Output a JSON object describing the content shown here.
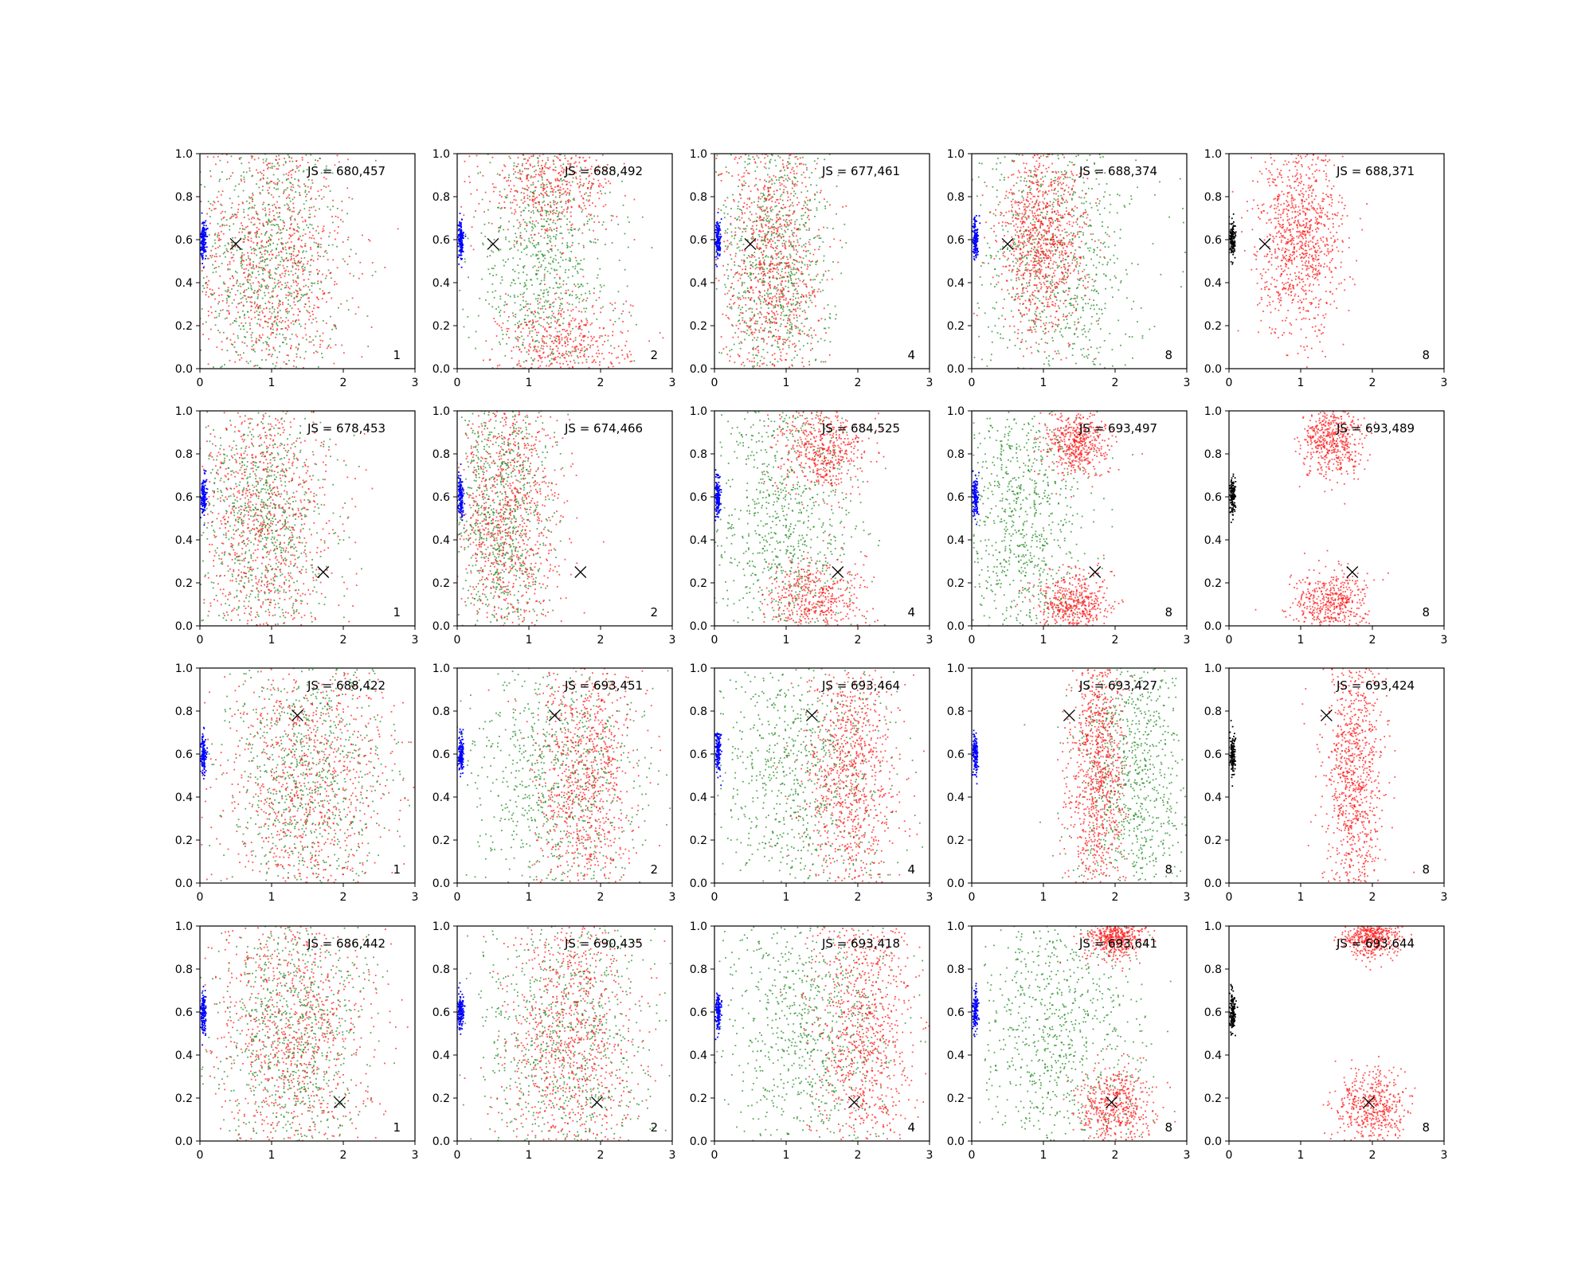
{
  "figure": {
    "rows": 4,
    "cols": 5,
    "colors": {
      "scatter_a": "#228B22",
      "scatter_b": "#FF1A1A",
      "source_cluster": "#0000FF",
      "source_cluster_final": "#000000",
      "marker": "#000000",
      "axes": "#000000"
    }
  },
  "chart_data": {
    "type": "scatter",
    "xlim": [
      0,
      3
    ],
    "ylim": [
      0,
      1
    ],
    "xticks": [
      "0",
      "1",
      "2",
      "3"
    ],
    "yticks": [
      "0.0",
      "0.2",
      "0.4",
      "0.6",
      "0.8",
      "1.0"
    ],
    "grid": false,
    "source_cluster": {
      "x": 0.05,
      "y": 0.6
    },
    "panels": [
      {
        "row": 0,
        "col": 0,
        "label": "JS = 680,457",
        "iter": "1",
        "target": {
          "x": 0.5,
          "y": 0.58
        },
        "red": [
          {
            "x": 1.0,
            "y": 0.5,
            "sx": 0.55,
            "sy": 0.35
          }
        ],
        "green": [
          {
            "x": 0.95,
            "y": 0.5,
            "sx": 0.5,
            "sy": 0.35
          }
        ],
        "source_color": "blue"
      },
      {
        "row": 0,
        "col": 1,
        "label": "JS = 688,492",
        "iter": "2",
        "target": {
          "x": 0.5,
          "y": 0.58
        },
        "red": [
          {
            "x": 1.3,
            "y": 0.85,
            "sx": 0.45,
            "sy": 0.12
          },
          {
            "x": 1.5,
            "y": 0.1,
            "sx": 0.45,
            "sy": 0.12
          }
        ],
        "green": [
          {
            "x": 1.2,
            "y": 0.5,
            "sx": 0.5,
            "sy": 0.35
          }
        ],
        "source_color": "blue"
      },
      {
        "row": 0,
        "col": 2,
        "label": "JS = 677,461",
        "iter": "4",
        "target": {
          "x": 0.5,
          "y": 0.58
        },
        "red": [
          {
            "x": 0.8,
            "y": 0.5,
            "sx": 0.35,
            "sy": 0.35
          }
        ],
        "green": [
          {
            "x": 0.85,
            "y": 0.5,
            "sx": 0.4,
            "sy": 0.35
          }
        ],
        "source_color": "blue"
      },
      {
        "row": 0,
        "col": 3,
        "label": "JS = 688,374",
        "iter": "8",
        "target": {
          "x": 0.5,
          "y": 0.58
        },
        "red": [
          {
            "x": 1.0,
            "y": 0.6,
            "sx": 0.3,
            "sy": 0.22
          }
        ],
        "green": [
          {
            "x": 1.2,
            "y": 0.5,
            "sx": 0.55,
            "sy": 0.35
          }
        ],
        "source_color": "blue"
      },
      {
        "row": 0,
        "col": 4,
        "label": "JS = 688,371",
        "iter": "8",
        "target": {
          "x": 0.5,
          "y": 0.58
        },
        "red": [
          {
            "x": 1.0,
            "y": 0.6,
            "sx": 0.3,
            "sy": 0.22
          }
        ],
        "green": [],
        "source_color": "black"
      },
      {
        "row": 1,
        "col": 0,
        "label": "JS = 678,453",
        "iter": "1",
        "target": {
          "x": 1.72,
          "y": 0.25
        },
        "red": [
          {
            "x": 0.9,
            "y": 0.5,
            "sx": 0.5,
            "sy": 0.35
          }
        ],
        "green": [
          {
            "x": 0.9,
            "y": 0.5,
            "sx": 0.45,
            "sy": 0.35
          }
        ],
        "source_color": "blue"
      },
      {
        "row": 1,
        "col": 1,
        "label": "JS = 674,466",
        "iter": "2",
        "target": {
          "x": 1.72,
          "y": 0.25
        },
        "red": [
          {
            "x": 0.7,
            "y": 0.5,
            "sx": 0.4,
            "sy": 0.35
          }
        ],
        "green": [
          {
            "x": 0.6,
            "y": 0.5,
            "sx": 0.35,
            "sy": 0.35
          }
        ],
        "source_color": "blue"
      },
      {
        "row": 1,
        "col": 2,
        "label": "JS = 684,525",
        "iter": "4",
        "target": {
          "x": 1.72,
          "y": 0.25
        },
        "red": [
          {
            "x": 1.5,
            "y": 0.82,
            "sx": 0.3,
            "sy": 0.1
          },
          {
            "x": 1.4,
            "y": 0.12,
            "sx": 0.35,
            "sy": 0.1
          }
        ],
        "green": [
          {
            "x": 1.0,
            "y": 0.5,
            "sx": 0.5,
            "sy": 0.35
          }
        ],
        "source_color": "blue"
      },
      {
        "row": 1,
        "col": 3,
        "label": "JS = 693,497",
        "iter": "8",
        "target": {
          "x": 1.72,
          "y": 0.25
        },
        "red": [
          {
            "x": 1.45,
            "y": 0.85,
            "sx": 0.22,
            "sy": 0.08
          },
          {
            "x": 1.4,
            "y": 0.1,
            "sx": 0.25,
            "sy": 0.08
          }
        ],
        "green": [
          {
            "x": 0.7,
            "y": 0.5,
            "sx": 0.45,
            "sy": 0.35
          }
        ],
        "source_color": "blue"
      },
      {
        "row": 1,
        "col": 4,
        "label": "JS = 693,489",
        "iter": "8",
        "target": {
          "x": 1.72,
          "y": 0.25
        },
        "red": [
          {
            "x": 1.45,
            "y": 0.85,
            "sx": 0.22,
            "sy": 0.08
          },
          {
            "x": 1.4,
            "y": 0.1,
            "sx": 0.25,
            "sy": 0.08
          }
        ],
        "green": [],
        "source_color": "black"
      },
      {
        "row": 2,
        "col": 0,
        "label": "JS = 688,422",
        "iter": "1",
        "target": {
          "x": 1.36,
          "y": 0.78
        },
        "red": [
          {
            "x": 1.5,
            "y": 0.5,
            "sx": 0.6,
            "sy": 0.35
          }
        ],
        "green": [
          {
            "x": 1.5,
            "y": 0.5,
            "sx": 0.55,
            "sy": 0.35
          }
        ],
        "source_color": "blue"
      },
      {
        "row": 2,
        "col": 1,
        "label": "JS = 693,451",
        "iter": "2",
        "target": {
          "x": 1.36,
          "y": 0.78
        },
        "red": [
          {
            "x": 1.8,
            "y": 0.5,
            "sx": 0.35,
            "sy": 0.35
          }
        ],
        "green": [
          {
            "x": 1.4,
            "y": 0.5,
            "sx": 0.6,
            "sy": 0.35
          }
        ],
        "source_color": "blue"
      },
      {
        "row": 2,
        "col": 2,
        "label": "JS = 693,464",
        "iter": "4",
        "target": {
          "x": 1.36,
          "y": 0.78
        },
        "red": [
          {
            "x": 1.9,
            "y": 0.5,
            "sx": 0.3,
            "sy": 0.35
          }
        ],
        "green": [
          {
            "x": 1.2,
            "y": 0.5,
            "sx": 0.6,
            "sy": 0.35
          }
        ],
        "source_color": "blue"
      },
      {
        "row": 2,
        "col": 3,
        "label": "JS = 693,427",
        "iter": "8",
        "target": {
          "x": 1.36,
          "y": 0.78
        },
        "red": [
          {
            "x": 1.75,
            "y": 0.5,
            "sx": 0.2,
            "sy": 0.35
          }
        ],
        "green": [
          {
            "x": 2.3,
            "y": 0.5,
            "sx": 0.4,
            "sy": 0.35
          }
        ],
        "source_color": "blue"
      },
      {
        "row": 2,
        "col": 4,
        "label": "JS = 693,424",
        "iter": "8",
        "target": {
          "x": 1.36,
          "y": 0.78
        },
        "red": [
          {
            "x": 1.75,
            "y": 0.5,
            "sx": 0.2,
            "sy": 0.35
          }
        ],
        "green": [],
        "source_color": "black"
      },
      {
        "row": 3,
        "col": 0,
        "label": "JS = 686,442",
        "iter": "1",
        "target": {
          "x": 1.95,
          "y": 0.18
        },
        "red": [
          {
            "x": 1.3,
            "y": 0.5,
            "sx": 0.55,
            "sy": 0.35
          }
        ],
        "green": [
          {
            "x": 1.3,
            "y": 0.5,
            "sx": 0.55,
            "sy": 0.35
          }
        ],
        "source_color": "blue"
      },
      {
        "row": 3,
        "col": 1,
        "label": "JS = 690,435",
        "iter": "2",
        "target": {
          "x": 1.95,
          "y": 0.18
        },
        "red": [
          {
            "x": 1.6,
            "y": 0.5,
            "sx": 0.45,
            "sy": 0.35
          }
        ],
        "green": [
          {
            "x": 1.5,
            "y": 0.5,
            "sx": 0.6,
            "sy": 0.35
          }
        ],
        "source_color": "blue"
      },
      {
        "row": 3,
        "col": 2,
        "label": "JS = 693,418",
        "iter": "4",
        "target": {
          "x": 1.95,
          "y": 0.18
        },
        "red": [
          {
            "x": 2.1,
            "y": 0.5,
            "sx": 0.35,
            "sy": 0.35
          }
        ],
        "green": [
          {
            "x": 1.3,
            "y": 0.5,
            "sx": 0.6,
            "sy": 0.35
          }
        ],
        "source_color": "blue"
      },
      {
        "row": 3,
        "col": 3,
        "label": "JS = 693,641",
        "iter": "8",
        "target": {
          "x": 1.95,
          "y": 0.18
        },
        "red": [
          {
            "x": 2.0,
            "y": 0.15,
            "sx": 0.25,
            "sy": 0.1
          },
          {
            "x": 2.0,
            "y": 0.95,
            "sx": 0.2,
            "sy": 0.05
          }
        ],
        "green": [
          {
            "x": 1.2,
            "y": 0.5,
            "sx": 0.6,
            "sy": 0.35
          }
        ],
        "source_color": "blue"
      },
      {
        "row": 3,
        "col": 4,
        "label": "JS = 693,644",
        "iter": "8",
        "target": {
          "x": 1.95,
          "y": 0.18
        },
        "red": [
          {
            "x": 2.0,
            "y": 0.15,
            "sx": 0.25,
            "sy": 0.1
          },
          {
            "x": 2.0,
            "y": 0.95,
            "sx": 0.2,
            "sy": 0.05
          }
        ],
        "green": [],
        "source_color": "black"
      }
    ]
  }
}
